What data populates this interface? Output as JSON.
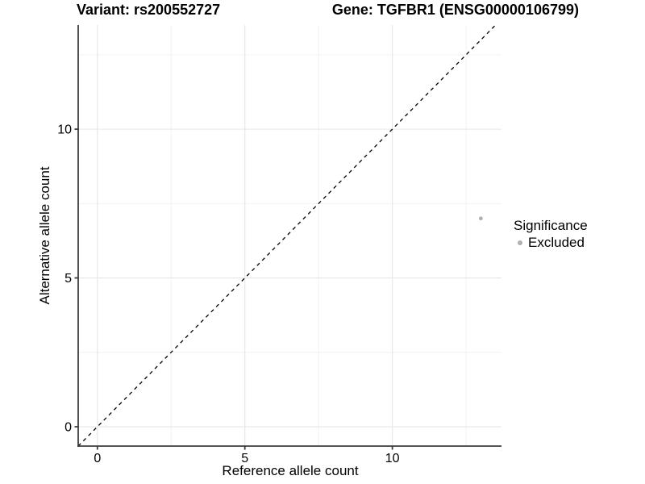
{
  "title": {
    "variant": "Variant: rs200552727",
    "gene": "Gene: TGFBR1 (ENSG00000106799)"
  },
  "legend": {
    "title": "Significance",
    "items": [
      {
        "label": "Excluded",
        "color": "#b0b0b0"
      }
    ]
  },
  "colors": {
    "axis_line": "#3c3c3c",
    "tick_mark": "#3c3c3c",
    "tick_label": "#000000",
    "grid_major": "#e6e6e6",
    "grid_minor": "#f0f0f0",
    "identity_line": "#000000",
    "point": "#b0b0b0",
    "background": "#ffffff"
  },
  "chart_data": {
    "type": "scatter",
    "title": "Variant: rs200552727    Gene: TGFBR1 (ENSG00000106799)",
    "xlabel": "Reference allele count",
    "ylabel": "Alternative allele count",
    "xlim": [
      -0.65,
      13.7
    ],
    "ylim": [
      -0.65,
      13.5
    ],
    "xticks": [
      0,
      5,
      10
    ],
    "yticks": [
      0,
      5,
      10
    ],
    "minor_xticks": [
      2.5,
      7.5,
      12.5
    ],
    "minor_yticks": [
      2.5,
      7.5,
      12.5
    ],
    "grid": true,
    "legend_position": "right",
    "series": [
      {
        "name": "Excluded",
        "points": [
          {
            "x": 13,
            "y": 7
          }
        ],
        "color": "#b0b0b0"
      }
    ],
    "reference_line": {
      "type": "identity",
      "slope": 1,
      "intercept": 0,
      "style": "dashed",
      "color": "#000000"
    }
  }
}
